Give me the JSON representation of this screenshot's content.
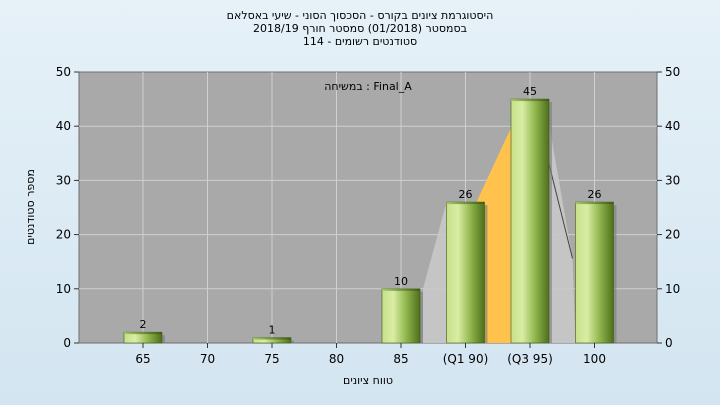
{
  "chart_data": {
    "type": "bar",
    "title_lines": [
      "היסטוגרמת ציונים בקורס - הסכסוך הסוני - שיעי באסלאם",
      "בסמסטר  (01/2018)  סמסטר חורף 2018/19",
      "סטודנטים רשומים - 114"
    ],
    "annotation": "במשיחה : Final_A",
    "xlabel": "טווח ציונים",
    "ylabel": "מספר סטודנטים",
    "ylim": [
      0,
      50
    ],
    "yticks": [
      0,
      10,
      20,
      30,
      40,
      50
    ],
    "grid": true,
    "categories": [
      "65",
      "70",
      "75",
      "80",
      "85",
      "(Q1 90)",
      "(Q3 95)",
      "100"
    ],
    "values": [
      2,
      0,
      1,
      0,
      10,
      26,
      45,
      26
    ],
    "data_labels": [
      "2",
      "",
      "1",
      "",
      "10",
      "26",
      "45",
      "26"
    ],
    "iqr_band": {
      "from": "(Q1 90)",
      "to": "(Q3 95)"
    },
    "colors": {
      "plot_bg": "#a9a9a9",
      "bar_light": "#d4ea9c",
      "bar_mid": "#8fb64a",
      "bar_dark": "#4b6c1a",
      "band_gold": "#ffc34d",
      "band_grey": "#c8c8c8"
    }
  }
}
